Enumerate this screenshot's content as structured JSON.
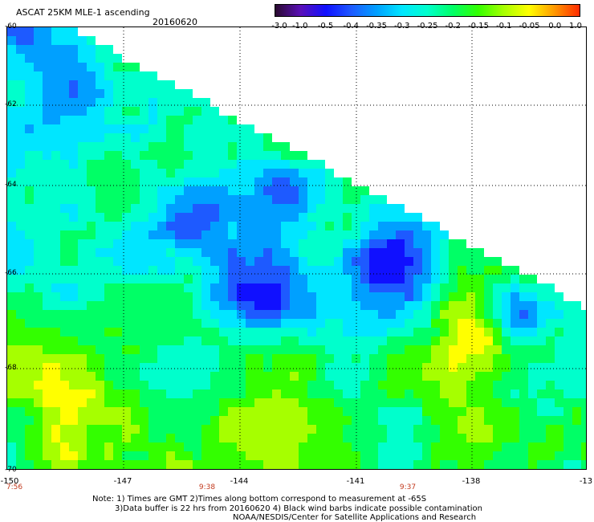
{
  "header": {
    "title": "ASCAT 25KM MLE-1 ascending",
    "date": "20160620"
  },
  "colorbar": {
    "labels": [
      "-3.0",
      "-1.0",
      "-0.5",
      "-0.4",
      "-0.35",
      "-0.3",
      "-0.25",
      "-0.2",
      "-0.15",
      "-0.1",
      "-0.05",
      "0.0",
      "1.0"
    ],
    "colors": [
      "#2a0a2f",
      "#5a10b8",
      "#1010ff",
      "#1e5aff",
      "#00a0ff",
      "#00e6ff",
      "#00ffcc",
      "#00ff66",
      "#33ff00",
      "#a6ff00",
      "#ffff00",
      "#ff9900",
      "#ff2a00"
    ]
  },
  "map": {
    "lat_labels": [
      "-60",
      "-62",
      "-64",
      "-66",
      "-68",
      "-70"
    ],
    "lon_labels": [
      "-150",
      "-147",
      "-144",
      "-141",
      "-138",
      "-13"
    ],
    "time_labels": [
      "7:56",
      "9:38",
      "9:37"
    ]
  },
  "footer": {
    "note_line1": "Note: 1) Times are GMT 2)Times along bottom correspond to measurement at -65S",
    "note_line2": "3)Data buffer is 22 hrs from 20160620 4) Black wind barbs indicate possible contamination",
    "credit": "NOAA/NESDIS/Center for Satellite Applications and Research"
  }
}
